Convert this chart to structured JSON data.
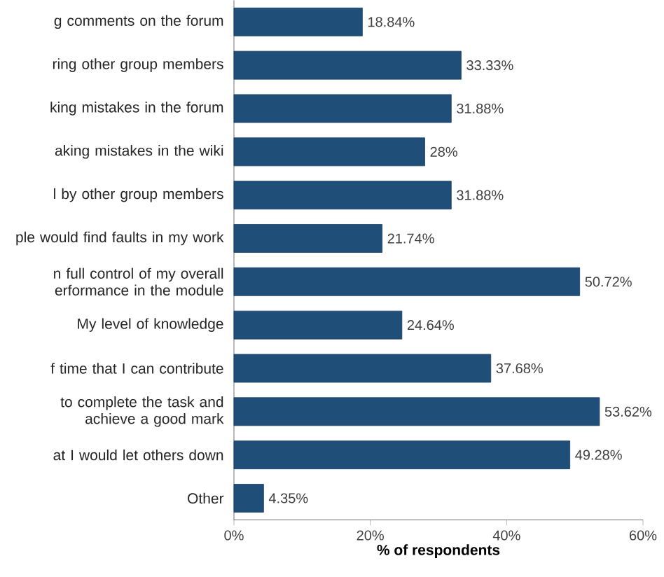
{
  "chart_data": {
    "type": "bar",
    "orientation": "horizontal",
    "xlabel": "% of respondents",
    "categories": [
      "g comments on the forum",
      "ring other group members",
      "king mistakes in the forum",
      "aking mistakes in the wiki",
      "l by other group members",
      "ple would find faults in my work",
      "n full control of my overall erformance in the module",
      "My level of knowledge",
      "f time that I can contribute",
      "to complete the task and achieve a good mark",
      "at I would let others down",
      "Other"
    ],
    "values": [
      18.84,
      33.33,
      31.88,
      28,
      31.88,
      21.74,
      50.72,
      24.64,
      37.68,
      53.62,
      49.28,
      4.35
    ],
    "value_labels": [
      "18.84%",
      "33.33%",
      "31.88%",
      "28%",
      "31.88%",
      "21.74%",
      "50.72%",
      "24.64%",
      "37.68%",
      "53.62%",
      "49.28%",
      "4.35%"
    ],
    "color": "#1f4e79",
    "xlim": [
      0,
      60
    ],
    "xticks": [
      {
        "value": 0,
        "label": "0%"
      },
      {
        "value": 20,
        "label": "20%"
      },
      {
        "value": 40,
        "label": "40%"
      },
      {
        "value": 60,
        "label": "60%"
      }
    ]
  }
}
